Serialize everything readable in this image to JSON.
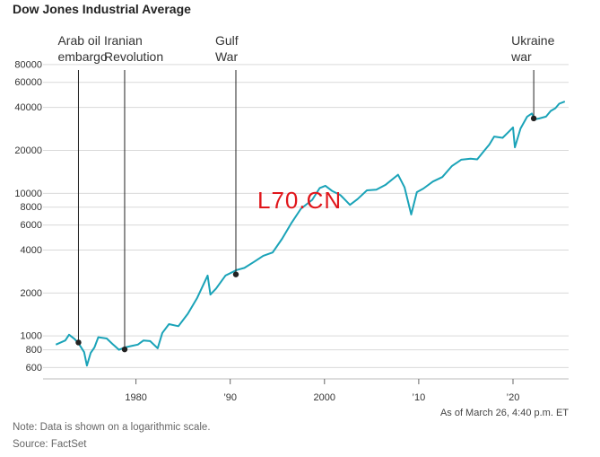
{
  "title": "Dow Jones Industrial Average",
  "footer": {
    "note": "Note: Data is shown on a logarithmic scale.",
    "source": "Source: FactSet",
    "as_of": "As of March 26, 4:40 p.m. ET"
  },
  "watermark": "L70.CN",
  "colors": {
    "line": "#1aa3b8",
    "grid": "#d9d9d9",
    "marker": "#222222",
    "watermark": "#e0161b"
  },
  "chart_data": {
    "type": "line",
    "title": "Dow Jones Industrial Average",
    "yscale": "log",
    "ylim": [
      500,
      95000
    ],
    "xlim": [
      1971,
      2025.9
    ],
    "grid": true,
    "yticks": [
      600,
      800,
      1000,
      2000,
      4000,
      6000,
      8000,
      10000,
      20000,
      40000,
      60000,
      80000
    ],
    "ytick_labels": [
      "600",
      "800",
      "1000",
      "2000",
      "4000",
      "6000",
      "8000",
      "10000",
      "20000",
      "40000",
      "60000",
      "80000"
    ],
    "xticks": [
      1980,
      1990,
      2000,
      2010,
      2020
    ],
    "xtick_labels": [
      "1980",
      "’90",
      "2000",
      "’10",
      "’20"
    ],
    "x": [
      1971.5,
      1972.5,
      1972.9,
      1973.5,
      1974.0,
      1974.5,
      1974.8,
      1975.2,
      1975.6,
      1976.0,
      1976.9,
      1977.5,
      1978.2,
      1978.8,
      1979.5,
      1980.2,
      1980.8,
      1981.5,
      1982.3,
      1982.8,
      1983.5,
      1984.5,
      1985.5,
      1986.5,
      1987.6,
      1987.9,
      1988.5,
      1989.5,
      1990.7,
      1991.5,
      1992.5,
      1993.5,
      1994.5,
      1995.5,
      1996.5,
      1997.5,
      1998.7,
      1999.5,
      2000.1,
      2000.8,
      2001.7,
      2002.7,
      2003.5,
      2004.5,
      2005.5,
      2006.5,
      2007.8,
      2008.5,
      2009.2,
      2009.8,
      2010.5,
      2011.5,
      2012.5,
      2013.5,
      2014.5,
      2015.5,
      2016.2,
      2016.9,
      2017.5,
      2018.0,
      2018.9,
      2019.5,
      2020.0,
      2020.2,
      2020.8,
      2021.5,
      2022.0,
      2022.3,
      2022.8,
      2023.5,
      2024.0,
      2024.5,
      2024.9,
      2025.5
    ],
    "values": [
      870,
      930,
      1020,
      950,
      870,
      770,
      620,
      760,
      830,
      980,
      960,
      880,
      800,
      830,
      850,
      870,
      930,
      920,
      820,
      1050,
      1210,
      1170,
      1430,
      1850,
      2650,
      1950,
      2150,
      2650,
      2900,
      3000,
      3300,
      3650,
      3850,
      4800,
      6200,
      7800,
      9000,
      10900,
      11300,
      10400,
      9700,
      8300,
      9100,
      10500,
      10600,
      11500,
      13500,
      11000,
      7100,
      10200,
      10800,
      12100,
      13000,
      15500,
      17200,
      17500,
      17300,
      19700,
      22000,
      25000,
      24500,
      26800,
      29000,
      21000,
      28500,
      34500,
      36300,
      33000,
      33500,
      34500,
      37800,
      39500,
      42500,
      44000
    ],
    "annotations": [
      {
        "year": 1973.9,
        "value": 900,
        "label": [
          "Arab oil",
          "embargo"
        ]
      },
      {
        "year": 1978.8,
        "value": 805,
        "label": [
          "Iranian",
          "Revolution"
        ]
      },
      {
        "year": 1990.6,
        "value": 2700,
        "label": [
          "Gulf",
          "War"
        ]
      },
      {
        "year": 2022.2,
        "value": 33500,
        "label": [
          "Ukraine",
          "war"
        ]
      }
    ]
  }
}
